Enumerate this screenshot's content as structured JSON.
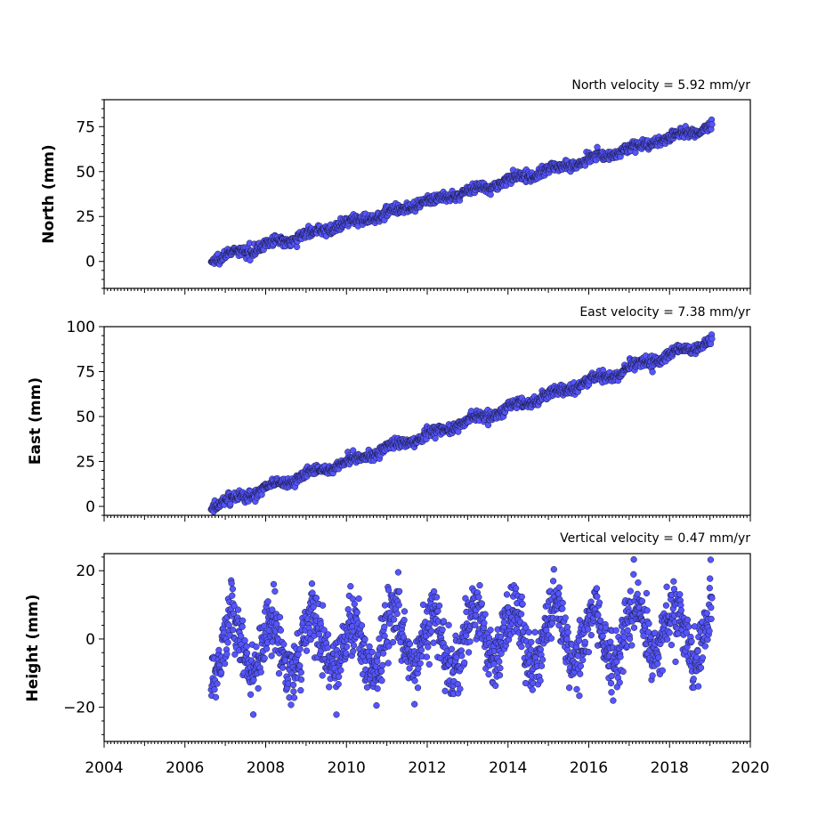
{
  "chart_data": {
    "type": "scatter",
    "x_range": [
      2004,
      2020
    ],
    "x_ticks": [
      "2004",
      "2006",
      "2008",
      "2010",
      "2012",
      "2014",
      "2016",
      "2018",
      "2020"
    ],
    "time_span": [
      2006.65,
      2019.05
    ],
    "marker_color": "#5555ff",
    "marker_edge_color": "#1a1a40",
    "panels": [
      {
        "id": "north",
        "ylabel": "North (mm)",
        "annotation": "North velocity = 5.92 mm/yr",
        "ylim": [
          -15,
          90
        ],
        "y_ticks": [
          "75",
          "50",
          "25",
          "0"
        ],
        "y_tick_values": [
          75,
          50,
          25,
          0
        ],
        "velocity_mm_per_yr": 5.92,
        "trend_start_mm": 1,
        "trend_end_mm": 75,
        "annual_amplitude_mm": 1.2,
        "noise_mm": 1.4
      },
      {
        "id": "east",
        "ylabel": "East (mm)",
        "annotation": "East velocity = 7.38 mm/yr",
        "ylim": [
          -5,
          100
        ],
        "y_ticks": [
          "100",
          "75",
          "50",
          "25",
          "0"
        ],
        "y_tick_values": [
          100,
          75,
          50,
          25,
          0
        ],
        "velocity_mm_per_yr": 7.38,
        "trend_start_mm": 0,
        "trend_end_mm": 92,
        "annual_amplitude_mm": 1.5,
        "noise_mm": 1.5
      },
      {
        "id": "height",
        "ylabel": "Height (mm)",
        "annotation": "Vertical velocity = 0.47 mm/yr",
        "ylim": [
          -30,
          25
        ],
        "y_ticks": [
          "20",
          "0",
          "−20"
        ],
        "y_tick_values": [
          20,
          0,
          -20
        ],
        "velocity_mm_per_yr": 0.47,
        "trend_start_mm": -3,
        "trend_end_mm": 3,
        "annual_amplitude_mm": 8,
        "noise_mm": 4.5
      }
    ]
  }
}
